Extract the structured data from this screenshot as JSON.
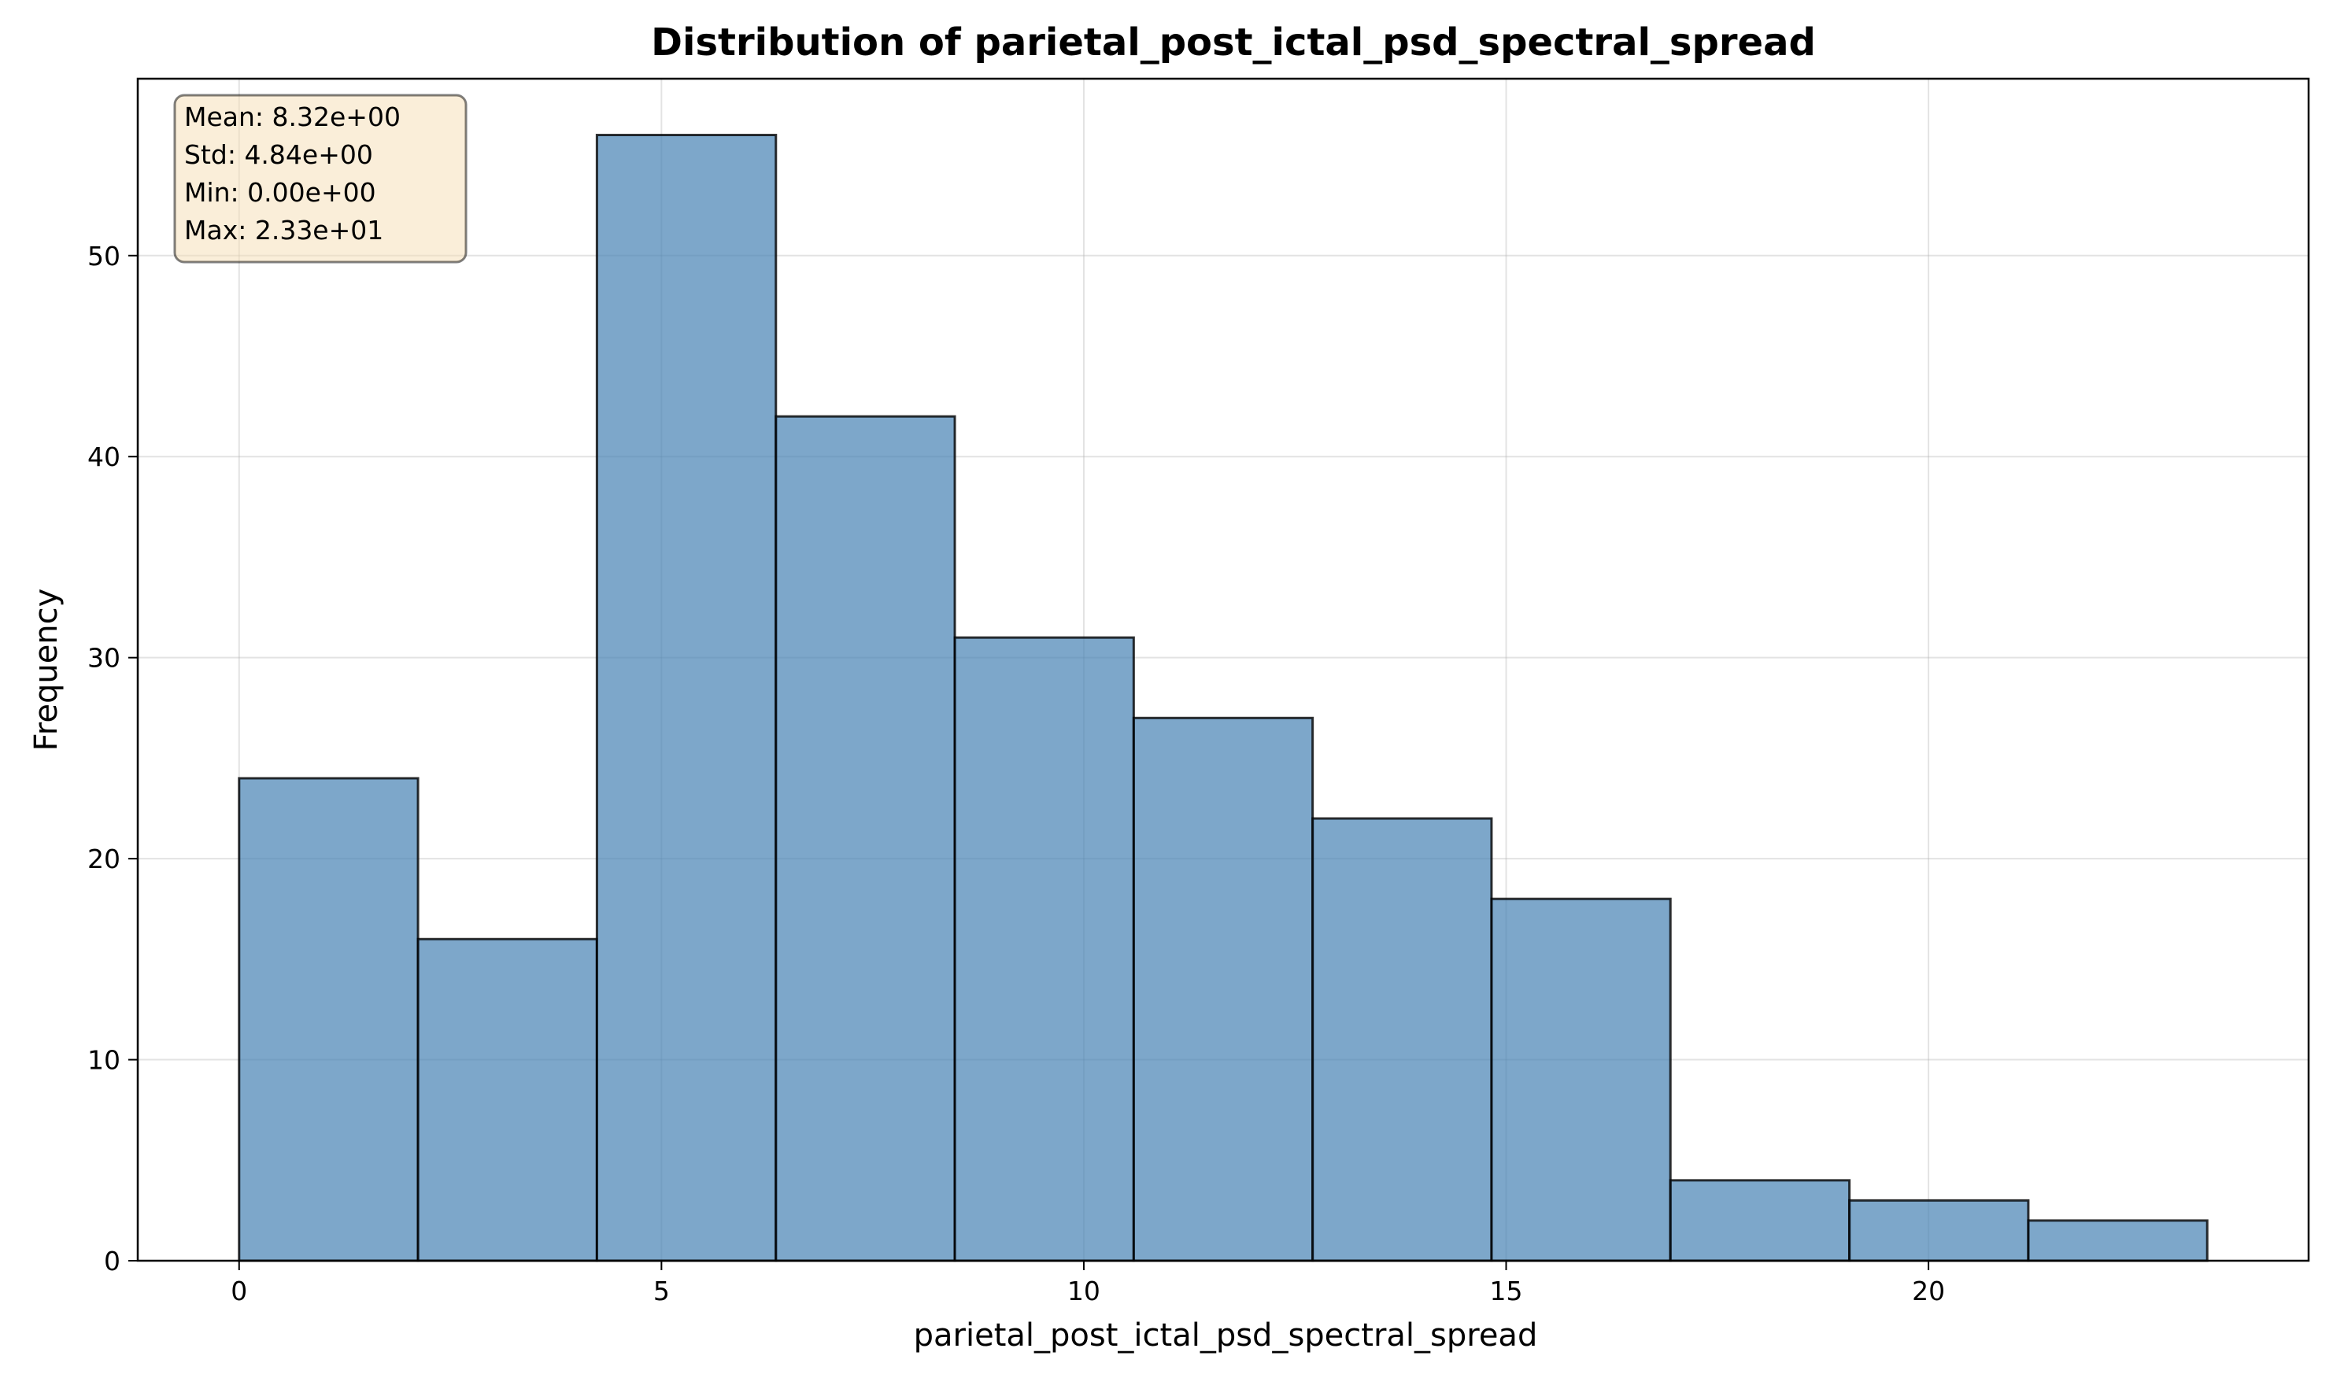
{
  "chart_data": {
    "type": "bar",
    "title": "Distribution of parietal_post_ictal_psd_spectral_spread",
    "xlabel": "parietal_post_ictal_psd_spectral_spread",
    "ylabel": "Frequency",
    "bin_edges": [
      0.0,
      2.118,
      4.236,
      6.355,
      8.473,
      10.591,
      12.709,
      14.827,
      16.945,
      19.064,
      21.182,
      23.3
    ],
    "values": [
      24,
      16,
      56,
      42,
      31,
      27,
      22,
      18,
      4,
      3,
      2
    ],
    "xlim": [
      -1.2,
      24.5
    ],
    "ylim": [
      0,
      58.8
    ],
    "xticks": [
      0,
      5,
      10,
      15,
      20
    ],
    "yticks": [
      0,
      10,
      20,
      30,
      40,
      50
    ],
    "grid": true,
    "colors": {
      "bar_fill": "#4682b4",
      "stats_box_fill": "#f5deb3"
    },
    "stats": [
      "Mean: 8.32e+00",
      "Std: 4.84e+00",
      "Min: 0.00e+00",
      "Max: 2.33e+01"
    ],
    "stats_placement": "top-left"
  }
}
